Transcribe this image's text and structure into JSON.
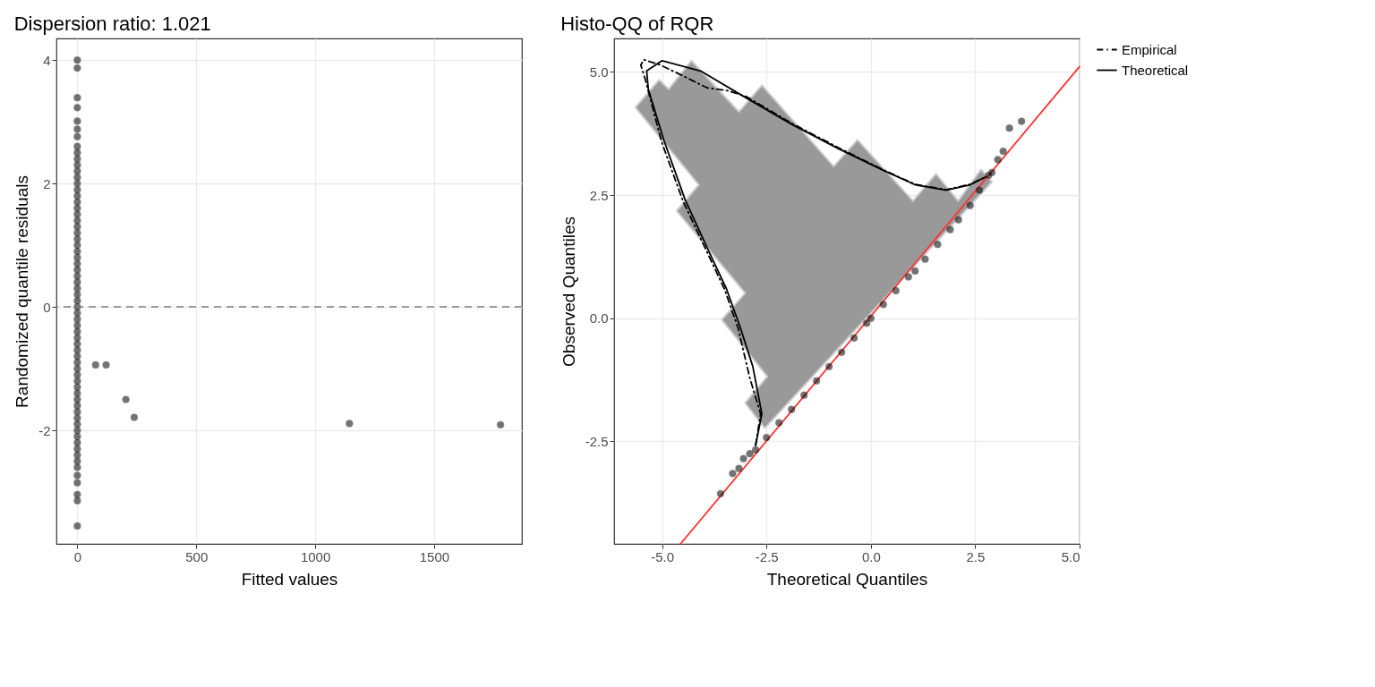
{
  "chart_data": [
    {
      "type": "scatter",
      "title": "Dispersion ratio: 1.021",
      "xlabel": "Fitted values",
      "ylabel": "Randomized quantile residuals",
      "xlim": [
        -88,
        1869
      ],
      "ylim": [
        -3.84,
        4.35
      ],
      "xticks": [
        0,
        500,
        1000,
        1500
      ],
      "yticks": [
        -2,
        0,
        2,
        4
      ],
      "grid": true,
      "legend": false,
      "marker": "circle",
      "series": [
        {
          "color": "#000000",
          "x": [
            0,
            0,
            0,
            0,
            0,
            0,
            0,
            0,
            0,
            0,
            0,
            0,
            0,
            0,
            0,
            0,
            0,
            0,
            0,
            0,
            0,
            0,
            0,
            0,
            0,
            0,
            0,
            0,
            0,
            0,
            0,
            0,
            0,
            0,
            0,
            0,
            0,
            0,
            0,
            0,
            0,
            0,
            0,
            0,
            0,
            0,
            0,
            0,
            0,
            0,
            0,
            0,
            0,
            0,
            0,
            0,
            0,
            0,
            0,
            0,
            0,
            0,
            0,
            0,
            0,
            77,
            121,
            204,
            239,
            1144,
            1779
          ],
          "values": [
            4.0,
            3.87,
            3.39,
            3.23,
            3.01,
            2.88,
            2.76,
            2.6,
            2.5,
            2.4,
            2.3,
            2.2,
            2.1,
            2.0,
            1.9,
            1.8,
            1.7,
            1.6,
            1.5,
            1.4,
            1.3,
            1.2,
            1.1,
            1.0,
            0.9,
            0.8,
            0.7,
            0.6,
            0.5,
            0.4,
            0.3,
            0.2,
            0.1,
            0.0,
            -0.1,
            -0.2,
            -0.3,
            -0.4,
            -0.5,
            -0.6,
            -0.7,
            -0.8,
            -0.9,
            -1.0,
            -1.1,
            -1.2,
            -1.3,
            -1.4,
            -1.5,
            -1.6,
            -1.7,
            -1.8,
            -1.9,
            -2.0,
            -2.1,
            -2.2,
            -2.3,
            -2.4,
            -2.5,
            -2.6,
            -2.73,
            -2.85,
            -3.04,
            -3.14,
            -3.55,
            -0.94,
            -0.94,
            -1.5,
            -1.79,
            -1.89,
            -1.91
          ]
        }
      ],
      "ref_lines": [
        {
          "axis": "y",
          "value": 0,
          "color": "#7f7f7f",
          "line_style": "dashed"
        }
      ]
    },
    {
      "type": "scatter",
      "title": "Histo-QQ of RQR",
      "xlabel": "Theoretical Quantiles",
      "ylabel": "Observed Quantiles",
      "xlim": [
        -6.15,
        5.0
      ],
      "ylim": [
        -4.58,
        5.68
      ],
      "xticks": [
        {
          "value": -5,
          "label": "-5.0"
        },
        {
          "value": -2.5,
          "label": "-2.5"
        },
        {
          "value": 0,
          "label": "0.0"
        },
        {
          "value": 2.5,
          "label": "2.5"
        },
        {
          "value": 5,
          "label": "5.0"
        }
      ],
      "yticks": [
        {
          "value": -2.5,
          "label": "-2.5"
        },
        {
          "value": 0,
          "label": "0.0"
        },
        {
          "value": 2.5,
          "label": "2.5"
        },
        {
          "value": 5,
          "label": "5.0"
        }
      ],
      "grid": true,
      "legend": "right",
      "series": [
        {
          "type": "area",
          "color": "#999999",
          "x": [
            -2.54,
            -3.01,
            -2.48,
            -3.57,
            -3.01,
            -4.65,
            -4.12,
            -5.64,
            -5.07,
            -4.84,
            -4.3,
            -3.16,
            -2.61,
            -0.89,
            -0.32,
            1.01,
            1.56,
            2.09,
            2.64,
            2.9,
            -2.54
          ],
          "values": [
            -2.23,
            -1.72,
            -1.18,
            -0.03,
            0.51,
            2.18,
            2.71,
            4.28,
            4.84,
            4.65,
            5.23,
            4.19,
            4.73,
            3.08,
            3.62,
            2.38,
            2.93,
            2.38,
            3.02,
            2.77,
            -2.23
          ]
        },
        {
          "type": "line",
          "color": "#ff3333",
          "x": [
            -4.56,
            5.0
          ],
          "values": [
            -4.58,
            5.11
          ],
          "line_style": "solid"
        },
        {
          "color": "#000000",
          "marker": "circle",
          "x": [
            -3.6,
            -3.31,
            -3.16,
            -3.05,
            -2.9,
            -2.76,
            -2.5,
            -2.2,
            -1.9,
            -1.6,
            -1.3,
            -1.0,
            -0.7,
            -0.4,
            -0.1,
            0.0,
            0.3,
            0.6,
            0.9,
            1.06,
            1.3,
            1.6,
            1.9,
            2.1,
            2.38,
            2.6,
            2.82,
            2.9,
            3.0,
            3.04,
            3.17,
            3.32,
            3.61
          ],
          "values": [
            -3.56,
            -3.15,
            -3.05,
            -2.85,
            -2.75,
            -2.67,
            -2.42,
            -2.12,
            -1.85,
            -1.56,
            -1.27,
            -0.98,
            -0.69,
            -0.4,
            -0.1,
            0.0,
            0.28,
            0.56,
            0.84,
            0.96,
            1.2,
            1.5,
            1.8,
            2.0,
            2.29,
            2.6,
            2.9,
            2.96,
            null,
            3.22,
            3.39,
            3.86,
            4.0
          ]
        },
        {
          "type": "line",
          "name": "Empirical",
          "color": "#000000",
          "line_style": "dashed",
          "x": [
            -2.76,
            -2.64,
            -2.9,
            -3.18,
            -3.5,
            -3.9,
            -4.5,
            -5.02,
            -5.4,
            -5.51,
            -5.44,
            -5.04,
            -4.45,
            -3.93,
            -3.42,
            -2.98,
            -1.88,
            -0.77,
            0.33,
            1.06,
            1.8,
            2.38,
            2.75
          ],
          "values": [
            -2.58,
            -1.94,
            -1.21,
            -0.2,
            0.58,
            1.3,
            2.38,
            3.6,
            4.84,
            5.14,
            5.25,
            5.14,
            4.9,
            4.68,
            4.62,
            4.5,
            3.95,
            3.46,
            3.0,
            2.72,
            2.61,
            2.72,
            2.87
          ]
        },
        {
          "type": "line",
          "name": "Theoretical",
          "color": "#000000",
          "line_style": "solid",
          "x": [
            -2.76,
            -2.61,
            -2.83,
            -3.13,
            -3.46,
            -3.86,
            -4.45,
            -4.96,
            -5.33,
            -5.37,
            -5.0,
            -4.08,
            -2.98,
            -1.88,
            -0.77,
            0.33,
            1.06,
            1.8,
            2.38,
            2.75
          ],
          "values": [
            -2.58,
            -1.94,
            -0.97,
            -0.18,
            0.6,
            1.32,
            2.41,
            3.62,
            4.65,
            5.02,
            5.23,
            5.02,
            4.47,
            3.93,
            3.44,
            2.99,
            2.71,
            2.6,
            2.71,
            2.87
          ]
        }
      ]
    }
  ]
}
